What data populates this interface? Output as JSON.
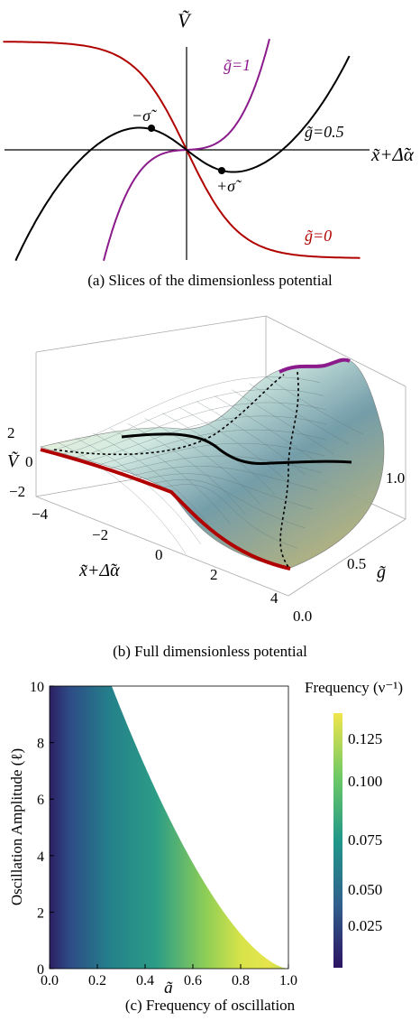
{
  "captions": {
    "a": "(a) Slices of the dimensionless potential",
    "b": "(b) Full dimensionless potential",
    "c": "(c) Frequency of oscillation"
  },
  "chart_data": [
    {
      "type": "line",
      "panel": "a",
      "ylabel": "Ṽ",
      "xlabel": "x̃+Δ̃α",
      "series": [
        {
          "name": "g̃=0",
          "color": "#b00000",
          "x": [
            -3.0,
            -2.0,
            -1.0,
            -0.5,
            0.0,
            0.5,
            1.0,
            2.0,
            3.0
          ],
          "y": [
            1.9,
            1.75,
            1.3,
            0.7,
            0.0,
            -0.7,
            -1.3,
            -1.75,
            -1.9
          ]
        },
        {
          "name": "g̃=1",
          "color": "#8b1a8b",
          "x": [
            -1.5,
            -1.0,
            -0.5,
            0.0,
            0.5,
            1.0,
            1.5
          ],
          "y": [
            -2.0,
            -0.9,
            -0.25,
            0.0,
            0.25,
            0.9,
            2.0
          ]
        },
        {
          "name": "g̃=0.5",
          "color": "#000000",
          "x": [
            -3.0,
            -2.0,
            -1.0,
            -0.5,
            0.0,
            0.5,
            1.0,
            2.0,
            3.0
          ],
          "y": [
            -1.6,
            -0.6,
            0.38,
            0.35,
            0.0,
            -0.35,
            -0.38,
            0.6,
            1.6
          ]
        }
      ],
      "annotations": [
        "−σ̃",
        "+σ̃"
      ]
    },
    {
      "type": "surface",
      "panel": "b",
      "zlabel": "Ṽ",
      "xlabel": "x̃+Δ̃α",
      "ylabel": "g̃",
      "x_ticks": [
        "−4",
        "−2",
        "0",
        "2",
        "4"
      ],
      "y_ticks": [
        "0.0",
        "0.5",
        "1.0"
      ],
      "z_ticks": [
        "2",
        "0",
        "−2"
      ]
    },
    {
      "type": "heatmap",
      "panel": "c",
      "xlabel": "g̃",
      "ylabel": "Oscillation Amplitude (ℓ)",
      "x_ticks": [
        "0.0",
        "0.2",
        "0.4",
        "0.6",
        "0.8",
        "1.0"
      ],
      "y_ticks": [
        "0",
        "2",
        "4",
        "6",
        "8",
        "10"
      ],
      "xlim": [
        0,
        1
      ],
      "ylim": [
        0,
        10
      ],
      "colorbar": {
        "title": "Frequency (ν⁻¹)",
        "ticks": [
          "0.125",
          "0.100",
          "0.075",
          "0.050",
          "0.025"
        ]
      }
    }
  ]
}
